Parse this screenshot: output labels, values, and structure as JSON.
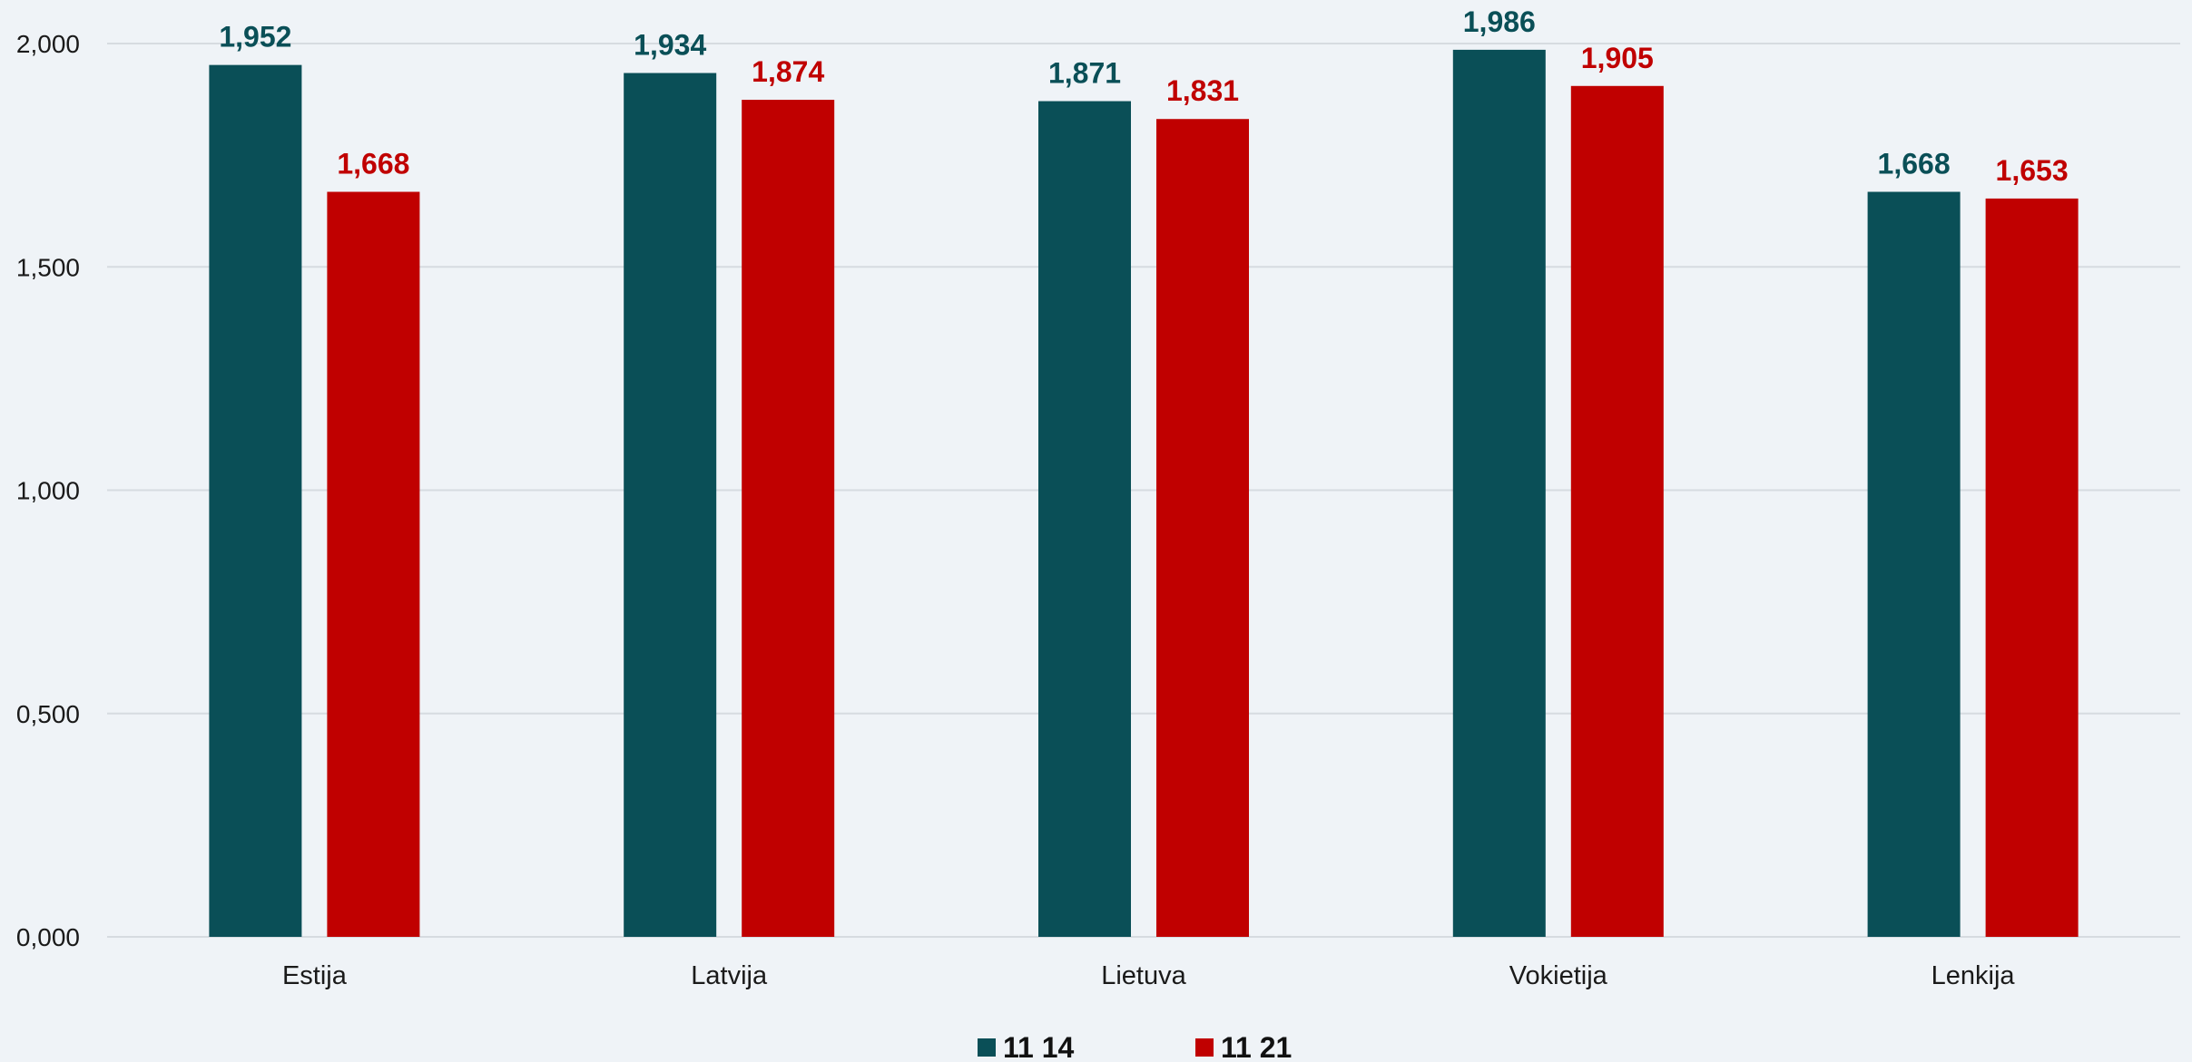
{
  "chart_data": {
    "type": "bar",
    "categories": [
      "Estija",
      "Latvija",
      "Lietuva",
      "Vokietija",
      "Lenkija"
    ],
    "series": [
      {
        "name": "11 14",
        "color": "#0a4f57",
        "values": [
          1.952,
          1.934,
          1.871,
          1.986,
          1.668
        ],
        "labels": [
          "1,952",
          "1,934",
          "1,871",
          "1,986",
          "1,668"
        ]
      },
      {
        "name": "11 21",
        "color": "#c00000",
        "values": [
          1.668,
          1.874,
          1.831,
          1.905,
          1.653
        ],
        "labels": [
          "1,668",
          "1,874",
          "1,831",
          "1,905",
          "1,653"
        ]
      }
    ],
    "ylim": [
      0,
      2
    ],
    "yticks": [
      0,
      0.5,
      1,
      1.5,
      2
    ],
    "ytick_labels": [
      "0,000",
      "0,500",
      "1,000",
      "1,500",
      "2,000"
    ],
    "grid": true,
    "legend_position": "bottom",
    "gridline_color": "#d6dbe0"
  }
}
